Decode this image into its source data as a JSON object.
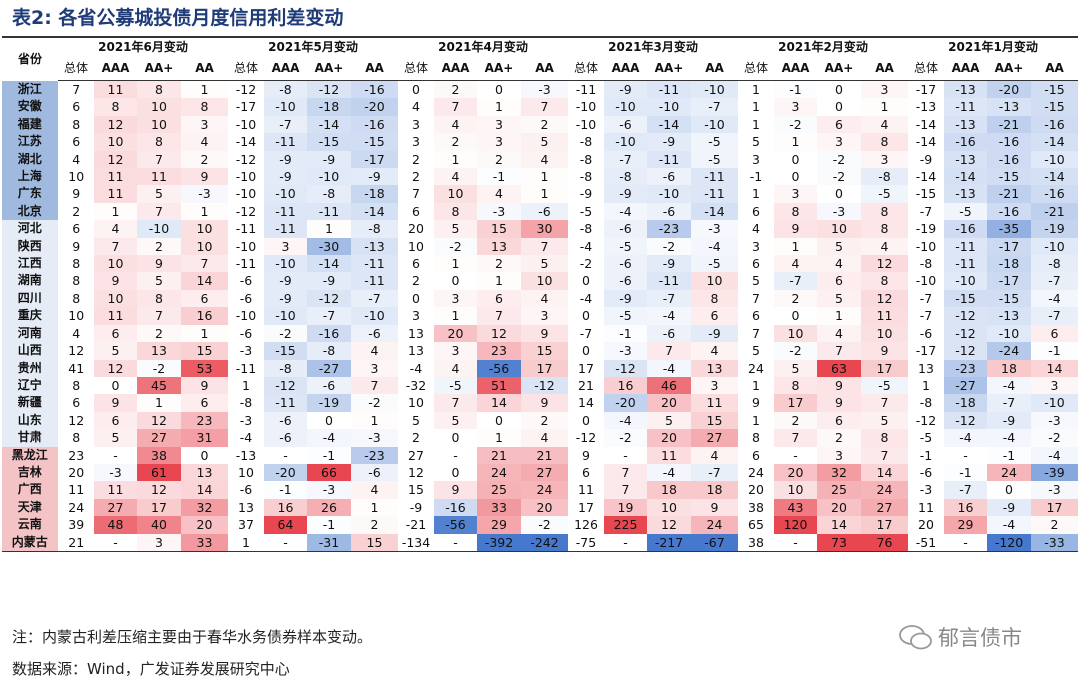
{
  "title": "表2: 各省公募城投债月度信用利差变动",
  "table": {
    "corner": "省份",
    "periods": [
      "2021年6月变动",
      "2021年5月变动",
      "2021年4月变动",
      "2021年3月变动",
      "2021年2月变动",
      "2021年1月变动"
    ],
    "subheaders": [
      "总体",
      "AAA",
      "AA+",
      "AA"
    ],
    "rows": [
      [
        "浙江",
        7,
        11,
        8,
        1,
        -12,
        -8,
        -12,
        -16,
        0,
        2,
        0,
        -3,
        -11,
        -9,
        -11,
        -10,
        1,
        -1,
        0,
        3,
        -17,
        -13,
        -20,
        -15
      ],
      [
        "安徽",
        6,
        8,
        10,
        8,
        -17,
        -10,
        -18,
        -20,
        4,
        7,
        1,
        7,
        -10,
        -10,
        -10,
        -7,
        1,
        3,
        0,
        1,
        -13,
        -11,
        -13,
        -15
      ],
      [
        "福建",
        8,
        12,
        10,
        3,
        -10,
        -7,
        -14,
        -16,
        3,
        4,
        3,
        2,
        -10,
        -6,
        -14,
        -10,
        1,
        -2,
        6,
        4,
        -14,
        -13,
        -21,
        -16
      ],
      [
        "江苏",
        6,
        10,
        8,
        4,
        -14,
        -11,
        -15,
        -15,
        3,
        2,
        3,
        5,
        -8,
        -10,
        -9,
        -5,
        5,
        1,
        3,
        8,
        -14,
        -16,
        -16,
        -14
      ],
      [
        "湖北",
        4,
        12,
        7,
        2,
        -12,
        -9,
        -9,
        -17,
        2,
        1,
        2,
        4,
        -8,
        -7,
        -11,
        -5,
        3,
        0,
        -2,
        3,
        -9,
        -13,
        -16,
        -10
      ],
      [
        "上海",
        10,
        11,
        11,
        9,
        -10,
        -9,
        -10,
        -9,
        2,
        4,
        -1,
        1,
        -8,
        -8,
        -6,
        -11,
        -1,
        0,
        -2,
        -8,
        -14,
        -14,
        -15,
        -14
      ],
      [
        "广东",
        9,
        11,
        5,
        -3,
        -10,
        -10,
        -8,
        -18,
        7,
        10,
        4,
        1,
        -9,
        -9,
        -10,
        -11,
        1,
        3,
        0,
        -5,
        -15,
        -13,
        -21,
        -16
      ],
      [
        "北京",
        2,
        1,
        7,
        1,
        -12,
        -11,
        -11,
        -14,
        6,
        8,
        -3,
        -6,
        -5,
        -4,
        -6,
        -14,
        6,
        8,
        -3,
        8,
        -7,
        -5,
        -16,
        -21
      ],
      [
        "河北",
        6,
        4,
        -10,
        10,
        -11,
        -11,
        1,
        -8,
        20,
        5,
        15,
        30,
        -8,
        -6,
        -23,
        -3,
        4,
        9,
        10,
        8,
        -19,
        -16,
        -35,
        -19
      ],
      [
        "陕西",
        9,
        7,
        2,
        10,
        -10,
        3,
        -30,
        -13,
        10,
        -2,
        13,
        7,
        -4,
        -5,
        -2,
        -4,
        3,
        1,
        5,
        4,
        -10,
        -11,
        -17,
        -10
      ],
      [
        "江西",
        8,
        10,
        9,
        7,
        -11,
        -10,
        -14,
        -11,
        6,
        1,
        2,
        5,
        -2,
        -6,
        -9,
        -5,
        6,
        4,
        4,
        12,
        -8,
        -11,
        -18,
        -8
      ],
      [
        "湖南",
        8,
        9,
        5,
        14,
        -6,
        -9,
        -9,
        -11,
        2,
        0,
        1,
        10,
        0,
        -6,
        -11,
        10,
        5,
        -7,
        6,
        8,
        -10,
        -10,
        -17,
        -7
      ],
      [
        "四川",
        8,
        10,
        8,
        6,
        -6,
        -9,
        -12,
        -7,
        0,
        3,
        6,
        4,
        -4,
        -9,
        -7,
        8,
        7,
        2,
        5,
        12,
        -7,
        -15,
        -15,
        -4
      ],
      [
        "重庆",
        10,
        11,
        7,
        16,
        -10,
        -10,
        -7,
        -10,
        3,
        1,
        7,
        3,
        0,
        -5,
        -4,
        6,
        6,
        0,
        1,
        11,
        -7,
        -12,
        -13,
        -7
      ],
      [
        "河南",
        4,
        6,
        2,
        1,
        -6,
        -2,
        -16,
        -6,
        13,
        20,
        12,
        9,
        -7,
        -1,
        -6,
        -9,
        7,
        10,
        4,
        10,
        -6,
        -12,
        -10,
        6
      ],
      [
        "山西",
        12,
        5,
        13,
        15,
        -3,
        -15,
        -8,
        4,
        13,
        3,
        23,
        15,
        0,
        -3,
        7,
        4,
        5,
        -2,
        7,
        9,
        -17,
        -12,
        -24,
        -1
      ],
      [
        "贵州",
        41,
        12,
        -2,
        53,
        -11,
        -8,
        -27,
        3,
        -4,
        4,
        -56,
        17,
        17,
        -12,
        -4,
        13,
        24,
        5,
        63,
        17,
        13,
        -23,
        18,
        14
      ],
      [
        "辽宁",
        8,
        0,
        45,
        9,
        1,
        -12,
        -6,
        7,
        -32,
        -5,
        51,
        -12,
        21,
        16,
        46,
        3,
        1,
        8,
        9,
        -5,
        1,
        -27,
        -4,
        3
      ],
      [
        "新疆",
        6,
        9,
        1,
        6,
        -8,
        -11,
        -19,
        -2,
        10,
        7,
        14,
        9,
        14,
        -20,
        20,
        11,
        9,
        17,
        9,
        7,
        -8,
        -18,
        -7,
        -10
      ],
      [
        "山东",
        12,
        6,
        12,
        23,
        -3,
        -6,
        0,
        1,
        5,
        5,
        0,
        2,
        0,
        -4,
        5,
        15,
        1,
        2,
        6,
        5,
        -12,
        -12,
        -9,
        -3
      ],
      [
        "甘肃",
        8,
        5,
        27,
        31,
        -4,
        -6,
        -4,
        -3,
        2,
        0,
        1,
        4,
        -12,
        -2,
        20,
        27,
        8,
        7,
        2,
        8,
        -5,
        -4,
        -4,
        -2
      ],
      [
        "黑龙江",
        23,
        "-",
        38,
        0,
        -13,
        "-",
        -1,
        -23,
        27,
        "-",
        21,
        21,
        9,
        "-",
        11,
        4,
        6,
        "-",
        3,
        7,
        -1,
        "-",
        -1,
        -4
      ],
      [
        "吉林",
        20,
        -3,
        61,
        13,
        10,
        -20,
        66,
        -6,
        12,
        0,
        24,
        27,
        6,
        7,
        -4,
        -7,
        24,
        20,
        32,
        14,
        -6,
        -1,
        24,
        -39
      ],
      [
        "广西",
        11,
        11,
        12,
        14,
        -6,
        -1,
        -3,
        4,
        15,
        9,
        25,
        24,
        11,
        7,
        18,
        18,
        20,
        10,
        25,
        24,
        -3,
        -7,
        0,
        -3
      ],
      [
        "天津",
        24,
        27,
        17,
        32,
        13,
        16,
        26,
        1,
        -9,
        -16,
        33,
        20,
        17,
        19,
        10,
        9,
        38,
        43,
        20,
        27,
        11,
        16,
        -9,
        17
      ],
      [
        "云南",
        39,
        48,
        40,
        20,
        37,
        64,
        -1,
        2,
        -21,
        -56,
        29,
        -2,
        126,
        225,
        12,
        24,
        65,
        120,
        14,
        17,
        20,
        29,
        -4,
        2
      ],
      [
        "内蒙古",
        21,
        "-",
        3,
        33,
        1,
        "-",
        -31,
        15,
        -134,
        "-",
        -392,
        -242,
        -75,
        "-",
        -217,
        -67,
        38,
        "-",
        73,
        76,
        -51,
        "-",
        -120,
        -33
      ]
    ]
  },
  "note": "注：内蒙古利差压缩主要由于春华水务债券样本变动。",
  "source": "数据来源：Wind，广发证券发展研究中心",
  "watermark": "郁言债市"
}
